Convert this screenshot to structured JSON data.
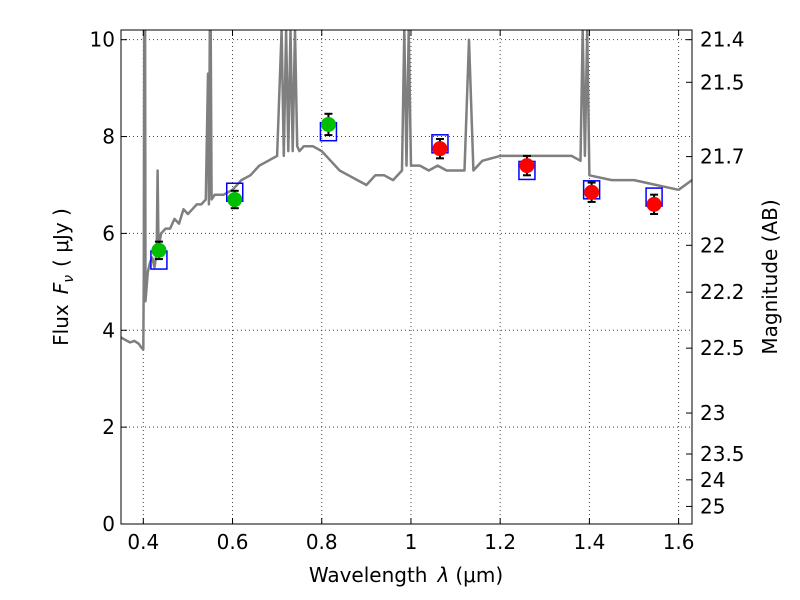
{
  "chart_data": {
    "type": "line",
    "xlabel_text": "Wavelength",
    "xlabel_symbol": "λ",
    "xlabel_unit": "(μm)",
    "ylabel_text": "Flux",
    "ylabel_symbol": "F",
    "ylabel_subscript": "ν",
    "ylabel_unit": "( μJy )",
    "y2label": "Magnitude (AB)",
    "xlim": [
      0.35,
      1.63
    ],
    "ylim": [
      0,
      10.2
    ],
    "grid": true,
    "x_ticks": [
      0.4,
      0.6,
      0.8,
      1.0,
      1.2,
      1.4,
      1.6
    ],
    "x_tick_labels": [
      "0.4",
      "0.6",
      "0.8",
      "1",
      "1.2",
      "1.4",
      "1.6"
    ],
    "y_ticks": [
      0,
      2,
      4,
      6,
      8,
      10
    ],
    "y_tick_labels": [
      "0",
      "2",
      "4",
      "6",
      "8",
      "10"
    ],
    "y2_ticks": [
      21.4,
      21.5,
      21.7,
      22,
      22.2,
      22.5,
      23,
      23.5,
      24,
      25
    ],
    "y2_tick_labels": [
      "21.4",
      "21.5",
      "21.7",
      "22",
      "22.2",
      "22.5",
      "23",
      "23.5",
      "24",
      "25"
    ],
    "colors": {
      "spectrum": "#7f7f7f",
      "model": "#0000ff",
      "green": "#00bf00",
      "red": "#ff0000",
      "errorbar": "#000000",
      "grid": "#444444"
    },
    "spectrum": {
      "x": [
        0.35,
        0.36,
        0.37,
        0.38,
        0.39,
        0.395,
        0.4,
        0.401,
        0.402,
        0.403,
        0.404,
        0.405,
        0.41,
        0.415,
        0.42,
        0.425,
        0.43,
        0.432,
        0.434,
        0.436,
        0.44,
        0.45,
        0.46,
        0.47,
        0.48,
        0.49,
        0.5,
        0.51,
        0.52,
        0.53,
        0.54,
        0.545,
        0.547,
        0.549,
        0.55,
        0.551,
        0.553,
        0.56,
        0.58,
        0.6,
        0.62,
        0.64,
        0.66,
        0.68,
        0.7,
        0.71,
        0.715,
        0.72,
        0.725,
        0.73,
        0.735,
        0.74,
        0.745,
        0.75,
        0.76,
        0.78,
        0.8,
        0.82,
        0.84,
        0.86,
        0.88,
        0.9,
        0.92,
        0.94,
        0.96,
        0.98,
        0.985,
        0.99,
        0.995,
        1.0,
        1.02,
        1.04,
        1.06,
        1.08,
        1.1,
        1.12,
        1.13,
        1.14,
        1.15,
        1.16,
        1.2,
        1.24,
        1.28,
        1.32,
        1.36,
        1.38,
        1.385,
        1.39,
        1.395,
        1.4,
        1.45,
        1.5,
        1.55,
        1.6,
        1.63
      ],
      "y": [
        3.85,
        3.8,
        3.75,
        3.78,
        3.72,
        3.65,
        3.6,
        5.2,
        10.2,
        10.2,
        10.2,
        4.6,
        5.2,
        5.4,
        5.5,
        5.3,
        5.6,
        7.3,
        5.7,
        5.8,
        6.0,
        6.1,
        6.1,
        6.3,
        6.2,
        6.5,
        6.4,
        6.5,
        6.6,
        6.6,
        6.7,
        9.3,
        6.6,
        10.2,
        6.8,
        10.2,
        6.7,
        6.8,
        6.8,
        6.9,
        7.1,
        7.2,
        7.4,
        7.5,
        7.6,
        10.2,
        7.6,
        10.2,
        7.7,
        10.2,
        7.7,
        10.2,
        7.8,
        7.7,
        7.8,
        7.8,
        7.7,
        7.5,
        7.3,
        7.2,
        7.1,
        7.0,
        7.2,
        7.2,
        7.1,
        7.3,
        10.2,
        7.4,
        10.2,
        7.4,
        7.4,
        7.3,
        7.4,
        7.3,
        7.3,
        7.3,
        10.0,
        7.3,
        7.4,
        7.5,
        7.6,
        7.6,
        7.6,
        7.6,
        7.6,
        7.5,
        10.2,
        7.6,
        10.2,
        7.2,
        7.1,
        7.1,
        7.0,
        6.9,
        7.1
      ]
    },
    "model_points": {
      "x": [
        0.435,
        0.605,
        0.815,
        1.065,
        1.26,
        1.405,
        1.545
      ],
      "y": [
        5.45,
        6.85,
        8.1,
        7.85,
        7.3,
        6.9,
        6.75
      ]
    },
    "observed_green": {
      "x": [
        0.435,
        0.605,
        0.815
      ],
      "y": [
        5.65,
        6.7,
        8.25
      ],
      "err": [
        0.18,
        0.18,
        0.22
      ]
    },
    "observed_red": {
      "x": [
        1.065,
        1.26,
        1.405,
        1.545
      ],
      "y": [
        7.75,
        7.4,
        6.85,
        6.6
      ],
      "err": [
        0.2,
        0.2,
        0.2,
        0.2
      ]
    }
  }
}
